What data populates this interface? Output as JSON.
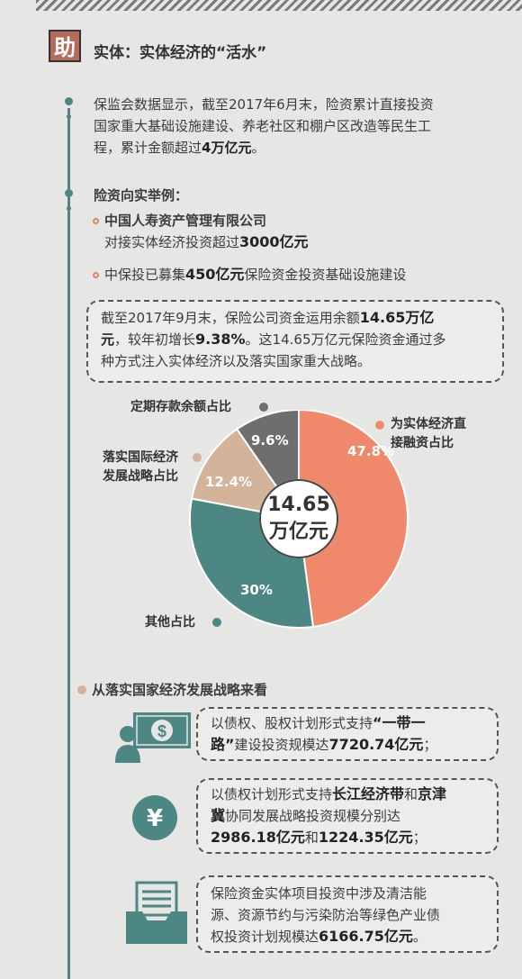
{
  "header": {
    "badge": "助",
    "title": "实体：实体经济的“活水”"
  },
  "intro": {
    "line1": "保监会数据显示，截至2017年6月末，险资累计直接投资",
    "line2": "国家重大基础设施建设、养老社区和棚户区改造等民生工",
    "line3_pre": "程，累计金额超过",
    "line3_bold": "4万亿元",
    "line3_post": "。"
  },
  "examples": {
    "heading": "险资向实举例：",
    "item1_title": "中国人寿资产管理有限公司",
    "item1_pre": "对接实体经济投资超过",
    "item1_bold": "3000亿元",
    "item2_pre": "中保投已募集",
    "item2_bold": "450亿元",
    "item2_post": "保险资金投资基础设施建设"
  },
  "summary": {
    "l1_pre": "截至2017年9月末，保险公司资金运用余额",
    "l1_bold": "14.65万亿",
    "l2_bold1": "元",
    "l2_mid": "，较年初增长",
    "l2_bold2": "9.38%",
    "l2_post": "。这14.65万亿元保险资金通过多",
    "l3": "种方式注入实体经济以及落实国家重大战略。"
  },
  "chart_data": {
    "type": "pie",
    "center_value": "14.65",
    "center_unit": "万亿元",
    "slices": [
      {
        "label": "为实体经济直接融资占比",
        "value": 47.8,
        "display": "47.8%",
        "color": "#f0896b"
      },
      {
        "label": "其他占比",
        "value": 30,
        "display": "30%",
        "color": "#4d8783"
      },
      {
        "label": "落实国际经济发展战略占比",
        "value": 12.4,
        "display": "12.4%",
        "color": "#d3b49a"
      },
      {
        "label": "定期存款余额占比",
        "value": 9.6,
        "display": "9.6%",
        "color": "#6e6e6e"
      }
    ],
    "legend_direct_1": "为实体经济直",
    "legend_direct_2": "接融资占比",
    "legend_other": "其他占比",
    "legend_intl_1": "落实国际经济",
    "legend_intl_2": "发展战略占比",
    "legend_deposit": "定期存款余额占比"
  },
  "strategy": {
    "heading": "从落实国家经济发展战略来看",
    "b1_pre": "以债权、股权计划形式支持",
    "b1_bold1": "“一带一",
    "b1_bold2": "路”",
    "b1_mid": "建设投资规模达",
    "b1_bold3": "7720.74亿元",
    "b1_post": "；",
    "b2_pre": "以债权计划形式支持",
    "b2_bold1": "长江经济带",
    "b2_mid1": "和",
    "b2_bold2": "京津",
    "b2_bold3": "冀",
    "b2_mid2": "协同发展战略投资规模分别达",
    "b2_bold4": "2986.18亿元",
    "b2_mid3": "和",
    "b2_bold5": "1224.35亿元",
    "b2_post": "；",
    "b3_l1": "保险资金实体项目投资中涉及清洁能",
    "b3_l2": "源、资源节约与污染防治等绿色产业债",
    "b3_l3_pre": "权投资计划规模达",
    "b3_l3_bold": "6166.75亿元",
    "b3_l3_post": "。",
    "icon_yen": "¥",
    "icon_dollar": "$"
  },
  "colors": {
    "teal": "#4d8783",
    "coral": "#f0896b",
    "tan": "#d3b49a",
    "gray": "#6e6e6e"
  }
}
